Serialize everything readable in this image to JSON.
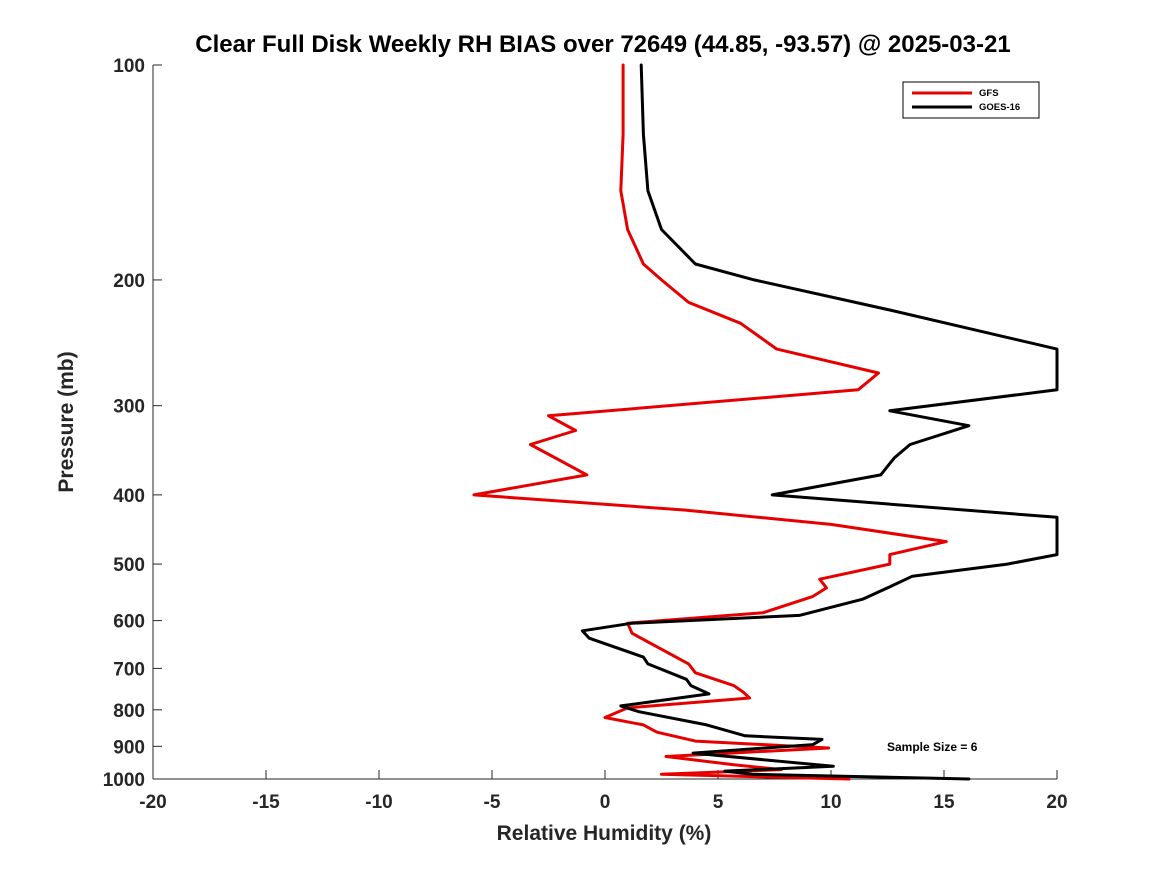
{
  "chart_data": {
    "type": "line",
    "title": "Clear Full Disk Weekly RH BIAS over 72649 (44.85, -93.57) @ 2025-03-21",
    "xlabel": "Relative Humidity (%)",
    "ylabel": "Pressure (mb)",
    "xlim": [
      -20,
      20
    ],
    "ylim": [
      1000,
      100
    ],
    "y_scale": "log",
    "x_ticks": [
      -20,
      -15,
      -10,
      -5,
      0,
      5,
      10,
      15,
      20
    ],
    "y_ticks": [
      100,
      200,
      300,
      400,
      500,
      600,
      700,
      800,
      900,
      1000
    ],
    "grid": false,
    "legend_position": "top-right",
    "annotation": "Sample Size = 6",
    "series": [
      {
        "name": "GFS",
        "color": "#e60000",
        "points": [
          [
            0.8,
            100
          ],
          [
            0.8,
            125
          ],
          [
            0.7,
            150
          ],
          [
            1.0,
            170
          ],
          [
            1.7,
            190
          ],
          [
            2.5,
            200
          ],
          [
            3.7,
            215
          ],
          [
            6.0,
            230
          ],
          [
            7.6,
            250
          ],
          [
            12.1,
            270
          ],
          [
            11.2,
            285
          ],
          [
            -2.5,
            310
          ],
          [
            -1.3,
            325
          ],
          [
            -3.3,
            340
          ],
          [
            -0.8,
            375
          ],
          [
            -5.8,
            400
          ],
          [
            3.5,
            420
          ],
          [
            10.0,
            440
          ],
          [
            15.1,
            465
          ],
          [
            12.6,
            485
          ],
          [
            12.6,
            500
          ],
          [
            9.5,
            525
          ],
          [
            9.8,
            540
          ],
          [
            9.2,
            555
          ],
          [
            7.0,
            585
          ],
          [
            1.0,
            605
          ],
          [
            1.2,
            625
          ],
          [
            3.7,
            690
          ],
          [
            4.0,
            710
          ],
          [
            5.7,
            740
          ],
          [
            6.1,
            755
          ],
          [
            6.4,
            770
          ],
          [
            1.0,
            795
          ],
          [
            0,
            820
          ],
          [
            1.7,
            840
          ],
          [
            2.3,
            860
          ],
          [
            4.0,
            885
          ],
          [
            9.9,
            905
          ],
          [
            2.7,
            930
          ],
          [
            5.7,
            955
          ],
          [
            7.8,
            970
          ],
          [
            2.5,
            985
          ],
          [
            10.8,
            1000
          ]
        ]
      },
      {
        "name": "GOES-16",
        "color": "#000000",
        "points": [
          [
            1.6,
            100
          ],
          [
            1.7,
            125
          ],
          [
            1.9,
            150
          ],
          [
            2.5,
            170
          ],
          [
            4.0,
            190
          ],
          [
            6.6,
            200
          ],
          [
            12.5,
            220
          ],
          [
            20,
            250
          ],
          [
            20,
            285
          ],
          [
            12.6,
            305
          ],
          [
            16.1,
            320
          ],
          [
            13.5,
            340
          ],
          [
            12.8,
            355
          ],
          [
            12.2,
            375
          ],
          [
            7.4,
            400
          ],
          [
            20,
            430
          ],
          [
            20,
            485
          ],
          [
            17.8,
            500
          ],
          [
            13.6,
            520
          ],
          [
            12.5,
            540
          ],
          [
            11.4,
            560
          ],
          [
            8.6,
            590
          ],
          [
            1.2,
            605
          ],
          [
            -1.0,
            620
          ],
          [
            -0.7,
            635
          ],
          [
            1.7,
            675
          ],
          [
            1.9,
            690
          ],
          [
            3.6,
            725
          ],
          [
            3.8,
            740
          ],
          [
            4.6,
            760
          ],
          [
            0.7,
            790
          ],
          [
            1.5,
            805
          ],
          [
            4.5,
            840
          ],
          [
            6.2,
            870
          ],
          [
            9.6,
            880
          ],
          [
            9.2,
            895
          ],
          [
            3.9,
            920
          ],
          [
            10.1,
            960
          ],
          [
            5.3,
            975
          ],
          [
            6.5,
            985
          ],
          [
            16.1,
            1000
          ]
        ]
      }
    ]
  }
}
